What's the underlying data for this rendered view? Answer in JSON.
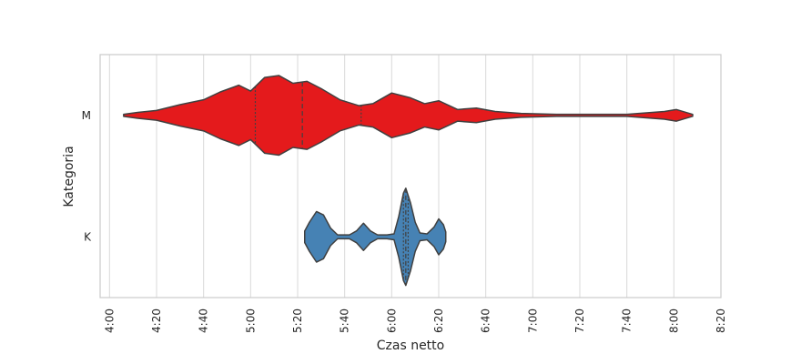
{
  "chart_data": {
    "type": "violin",
    "orientation": "horizontal",
    "title": "",
    "xlabel": "Czas netto",
    "ylabel": "Kategoria",
    "x_unit": "minutes:seconds",
    "xlim": [
      "3:56",
      "8:20"
    ],
    "x_ticks": [
      "4:00",
      "4:20",
      "4:40",
      "5:00",
      "5:20",
      "5:40",
      "6:00",
      "6:20",
      "6:40",
      "7:00",
      "7:20",
      "7:40",
      "8:00",
      "8:20"
    ],
    "grid": "vertical",
    "legend": "none",
    "inner": "quartile",
    "categories": [
      "M",
      "K"
    ],
    "series": [
      {
        "category": "M",
        "color": "#e41a1c",
        "range": [
          "4:06",
          "8:08"
        ],
        "quartiles": [
          "5:02",
          "5:22",
          "5:47"
        ],
        "density": [
          [
            "4:06",
            0.02
          ],
          [
            "4:12",
            0.06
          ],
          [
            "4:20",
            0.1
          ],
          [
            "4:30",
            0.22
          ],
          [
            "4:40",
            0.32
          ],
          [
            "4:47",
            0.48
          ],
          [
            "4:55",
            0.62
          ],
          [
            "5:00",
            0.5
          ],
          [
            "5:06",
            0.78
          ],
          [
            "5:12",
            0.82
          ],
          [
            "5:18",
            0.66
          ],
          [
            "5:24",
            0.7
          ],
          [
            "5:30",
            0.55
          ],
          [
            "5:38",
            0.32
          ],
          [
            "5:46",
            0.2
          ],
          [
            "5:52",
            0.24
          ],
          [
            "6:00",
            0.46
          ],
          [
            "6:08",
            0.36
          ],
          [
            "6:14",
            0.24
          ],
          [
            "6:20",
            0.3
          ],
          [
            "6:28",
            0.12
          ],
          [
            "6:36",
            0.15
          ],
          [
            "6:44",
            0.08
          ],
          [
            "6:55",
            0.04
          ],
          [
            "7:10",
            0.02
          ],
          [
            "7:40",
            0.02
          ],
          [
            "7:56",
            0.08
          ],
          [
            "8:01",
            0.12
          ],
          [
            "8:08",
            0.02
          ]
        ]
      },
      {
        "category": "K",
        "color": "#4682b4",
        "range": [
          "5:23",
          "6:23"
        ],
        "quartiles": [
          "6:05",
          "6:06",
          "6:07"
        ],
        "density": [
          [
            "5:23",
            0.12
          ],
          [
            "5:25",
            0.3
          ],
          [
            "5:28",
            0.52
          ],
          [
            "5:31",
            0.45
          ],
          [
            "5:34",
            0.18
          ],
          [
            "5:37",
            0.04
          ],
          [
            "5:42",
            0.04
          ],
          [
            "5:45",
            0.12
          ],
          [
            "5:48",
            0.28
          ],
          [
            "5:51",
            0.12
          ],
          [
            "5:54",
            0.04
          ],
          [
            "5:58",
            0.04
          ],
          [
            "6:01",
            0.06
          ],
          [
            "6:03",
            0.42
          ],
          [
            "6:05",
            0.9
          ],
          [
            "6:06",
            1.0
          ],
          [
            "6:08",
            0.7
          ],
          [
            "6:10",
            0.3
          ],
          [
            "6:12",
            0.08
          ],
          [
            "6:15",
            0.06
          ],
          [
            "6:18",
            0.2
          ],
          [
            "6:20",
            0.37
          ],
          [
            "6:22",
            0.25
          ],
          [
            "6:23",
            0.1
          ]
        ]
      }
    ]
  }
}
